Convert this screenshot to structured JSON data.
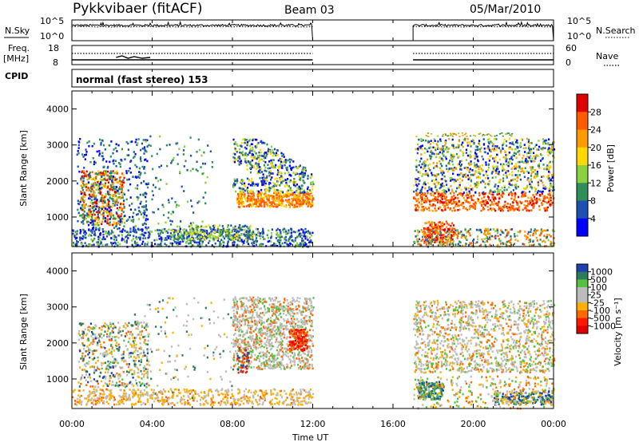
{
  "header": {
    "station": "Pykkvibaer (fitACF)",
    "beam": "Beam 03",
    "date": "05/Mar/2010"
  },
  "nsky_panel": {
    "left_label": "N.Sky",
    "left_ticks": [
      "10^5",
      "10^0"
    ],
    "right_label": "N.Search",
    "right_ticks": [
      "10^5",
      "10^0"
    ]
  },
  "freq_panel": {
    "left_label_1": "Freq.",
    "left_label_2": "[MHz]",
    "left_ticks": [
      "18",
      "8"
    ],
    "right_label": "Nave",
    "right_ticks": [
      "60",
      "0"
    ]
  },
  "cpid": {
    "label": "CPID",
    "mode": "normal (fast stereo) 153"
  },
  "chart_data": [
    {
      "type": "heatmap",
      "name": "power",
      "ylabel": "Slant Range [km]",
      "xlabel": "Time UT",
      "x_ticks": [
        "00:00",
        "04:00",
        "08:00",
        "12:00",
        "16:00",
        "20:00",
        "00:00"
      ],
      "x_range_hours": [
        0,
        24
      ],
      "y_ticks": [
        "1000",
        "2000",
        "3000",
        "4000"
      ],
      "y_range_km": [
        180,
        4500
      ],
      "data_gap_hours": [
        12,
        17
      ],
      "colorbar_label": "Power [dB]",
      "colorbar_ticks": [
        "28",
        "24",
        "20",
        "16",
        "12",
        "8",
        "4"
      ],
      "colorbar_colors": [
        "#e00000",
        "#ff5a00",
        "#ff9a00",
        "#ffd800",
        "#8ad040",
        "#2f8e5a",
        "#1e50b4",
        "#0000ff"
      ]
    },
    {
      "type": "heatmap",
      "name": "velocity",
      "ylabel": "Slant Range [km]",
      "xlabel": "Time UT",
      "x_ticks": [
        "00:00",
        "04:00",
        "08:00",
        "12:00",
        "16:00",
        "20:00",
        "00:00"
      ],
      "x_range_hours": [
        0,
        24
      ],
      "y_ticks": [
        "1000",
        "2000",
        "3000",
        "4000"
      ],
      "y_range_km": [
        180,
        4500
      ],
      "data_gap_hours": [
        12,
        17
      ],
      "colorbar_label": "Velocity [m s⁻¹]",
      "colorbar_ticks": [
        "1000",
        "500",
        "100",
        "25",
        "-25",
        "-100",
        "-500",
        "-1000"
      ],
      "colorbar_colors": [
        "#2040b0",
        "#2e7a5c",
        "#58c040",
        "#bcbcbc",
        "#bcbcbc",
        "#ffb000",
        "#ff6a00",
        "#ff1800",
        "#e00000"
      ]
    }
  ]
}
